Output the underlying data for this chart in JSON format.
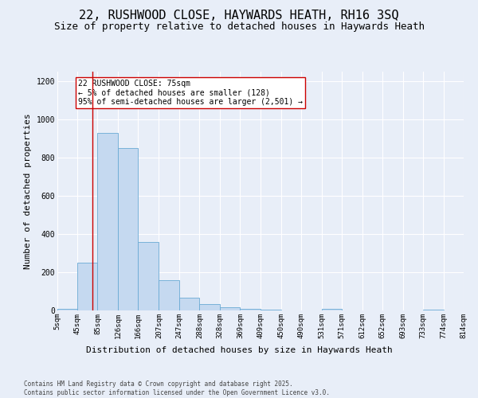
{
  "title": "22, RUSHWOOD CLOSE, HAYWARDS HEATH, RH16 3SQ",
  "subtitle": "Size of property relative to detached houses in Haywards Heath",
  "xlabel": "Distribution of detached houses by size in Haywards Heath",
  "ylabel": "Number of detached properties",
  "bar_edges": [
    5,
    45,
    85,
    126,
    166,
    207,
    247,
    288,
    328,
    369,
    409,
    450,
    490,
    531,
    571,
    612,
    652,
    693,
    733,
    774,
    814
  ],
  "bar_heights": [
    7,
    248,
    930,
    848,
    358,
    158,
    65,
    32,
    18,
    10,
    5,
    0,
    0,
    8,
    0,
    0,
    0,
    0,
    5,
    0,
    0
  ],
  "bar_color": "#c5d9f0",
  "bar_edgecolor": "#6aaad4",
  "vline_x": 75,
  "vline_color": "#cc0000",
  "annotation_text": "22 RUSHWOOD CLOSE: 75sqm\n← 5% of detached houses are smaller (128)\n95% of semi-detached houses are larger (2,501) →",
  "annotation_box_edgecolor": "#cc0000",
  "annotation_box_facecolor": "#ffffff",
  "ylim": [
    0,
    1250
  ],
  "yticks": [
    0,
    200,
    400,
    600,
    800,
    1000,
    1200
  ],
  "tick_labels": [
    "5sqm",
    "45sqm",
    "85sqm",
    "126sqm",
    "166sqm",
    "207sqm",
    "247sqm",
    "288sqm",
    "328sqm",
    "369sqm",
    "409sqm",
    "450sqm",
    "490sqm",
    "531sqm",
    "571sqm",
    "612sqm",
    "652sqm",
    "693sqm",
    "733sqm",
    "774sqm",
    "814sqm"
  ],
  "footer": "Contains HM Land Registry data © Crown copyright and database right 2025.\nContains public sector information licensed under the Open Government Licence v3.0.",
  "bg_color": "#e8eef8",
  "grid_color": "#ffffff",
  "title_fontsize": 11,
  "subtitle_fontsize": 9,
  "axis_label_fontsize": 8,
  "tick_fontsize": 6.5,
  "annotation_fontsize": 7
}
